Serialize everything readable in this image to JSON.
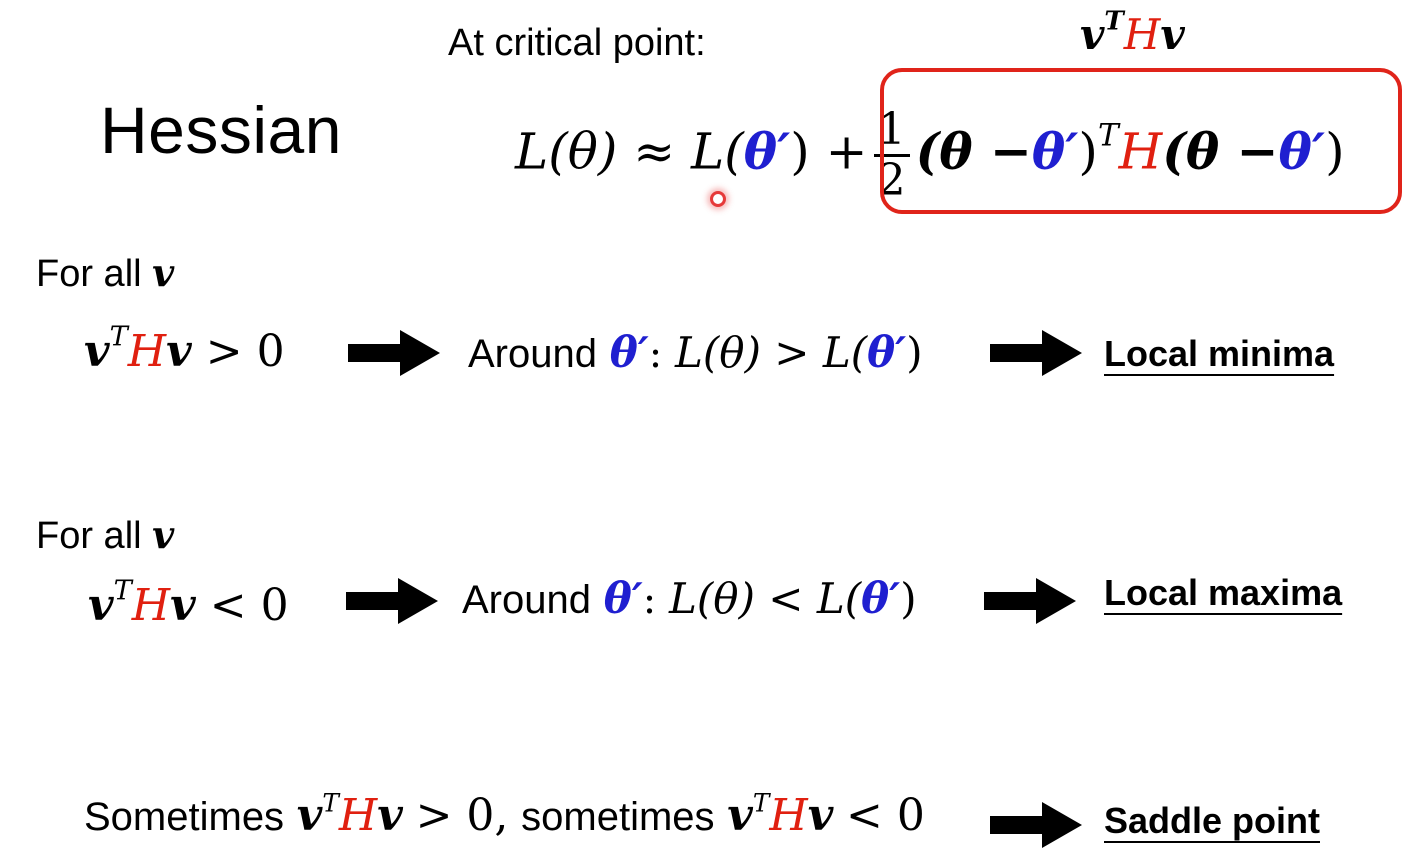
{
  "slide": {
    "title": "Hessian",
    "critical_label": "At critical point:",
    "quadratic_form": {
      "v": "v",
      "transpose": "T",
      "h": "H"
    },
    "taylor": {
      "lhs": "L(θ) ≈ L(",
      "theta_prime": "θ′",
      "after": ") +",
      "frac_num": "1",
      "frac_den": "2",
      "p1": "(θ −",
      "p2": ")",
      "p3": "(θ −",
      "p4": ")"
    },
    "pos_case": {
      "for_all": "For all",
      "relation": "> 0",
      "around": "Around",
      "colon": ":",
      "compare": "L(θ) > L(",
      "close": ")",
      "result": "Local minima"
    },
    "neg_case": {
      "for_all": "For all",
      "relation": "< 0",
      "around": "Around",
      "colon": ":",
      "compare": "L(θ) < L(",
      "close": ")",
      "result": "Local maxima"
    },
    "saddle_case": {
      "sometimes1": "Sometimes",
      "rel1": "> 0,",
      "sometimes2": "sometimes",
      "rel2": "< 0",
      "result": "Saddle point"
    },
    "colors": {
      "red": "#e02010",
      "blue": "#1f1fd0",
      "box": "#e0241a"
    }
  }
}
